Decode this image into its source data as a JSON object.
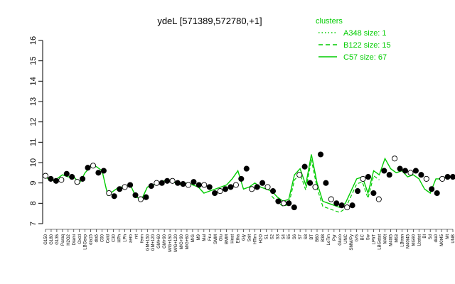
{
  "chart_data": {
    "type": "line",
    "title": "ydeL [571389,572780,+1]",
    "xlabel": "",
    "ylabel": "",
    "ylim": [
      7,
      16
    ],
    "yticks": [
      7,
      8,
      9,
      10,
      11,
      12,
      13,
      14,
      15,
      16
    ],
    "colors": {
      "line": "#00cc00",
      "points": "#000000",
      "axis": "#000000"
    },
    "legend": {
      "title": "clusters",
      "placement": "top-right",
      "entries": [
        {
          "label": "A348 size: 1",
          "style": "dotted"
        },
        {
          "label": "B122 size: 15",
          "style": "dashed"
        },
        {
          "label": "C57 size: 67",
          "style": "solid"
        }
      ]
    },
    "categories": [
      "G150",
      "G180",
      "G135",
      "Paraq",
      "H2O2",
      "Diami",
      "Oxctl",
      "LBGexp",
      "dia15",
      "dia5",
      "C90",
      "Cold",
      "C30",
      "HPh",
      "LPh",
      "aero",
      "nit",
      "ferm",
      "GM+150",
      "GM+120",
      "GM+60",
      "GM+90",
      "M/G+150",
      "M/G+120",
      "M/G+90",
      "M/G+60",
      "M/G",
      "M9",
      "Mal",
      "Fru",
      "SMM",
      "Glu",
      "BMM",
      "Heat",
      "Etha",
      "Gly",
      "Salt",
      "HTim",
      "H2O",
      "S1",
      "S2",
      "S3",
      "S4",
      "S5",
      "S6",
      "S7",
      "S8",
      "BT",
      "B60",
      "B38",
      "LoTm",
      "Pyr",
      "Gluco",
      "UNC",
      "SMM/Py",
      "G/S",
      "BC",
      "Sw",
      "LPhT",
      "LBGstat",
      "M40t",
      "M40t5",
      "M63",
      "LBtran",
      "M40t45",
      "MG90",
      "Lbstat",
      "BI",
      "Sd",
      "dia0",
      "M0t45",
      "Mt",
      "UNB"
    ],
    "series": [
      {
        "values": [
          9.3,
          9.1,
          9.2,
          9.4,
          9.3,
          9.3,
          9.0,
          9.5,
          9.8,
          9.8,
          9.6,
          8.4,
          8.6,
          8.8,
          8.8,
          8.9,
          8.3,
          8.2,
          8.8,
          8.9,
          9.0,
          9.1,
          9.1,
          9.0,
          8.9,
          9.0,
          8.9,
          8.8,
          8.5,
          8.6,
          8.7,
          8.8,
          8.9,
          9.2,
          9.6,
          8.7,
          8.8,
          9.0,
          8.8,
          8.7,
          8.6,
          8.3,
          8.1,
          8.2,
          9.4,
          9.7,
          8.9,
          10.4,
          9.0,
          8.1,
          8.0,
          7.9,
          7.8,
          8.0,
          8.6,
          9.2,
          9.3,
          8.5,
          9.6,
          9.4,
          10.2,
          9.7,
          9.5,
          9.6,
          9.3,
          9.4,
          9.2,
          8.7,
          8.5,
          9.2,
          9.2,
          9.3,
          9.3
        ]
      }
    ],
    "points": [
      [
        0,
        9.35
      ],
      [
        0.5,
        9.2
      ],
      [
        1,
        9.1
      ],
      [
        1.5,
        9.15
      ],
      [
        2,
        9.45
      ],
      [
        2.5,
        9.3
      ],
      [
        3,
        9.05
      ],
      [
        3.5,
        9.2
      ],
      [
        4,
        9.75
      ],
      [
        4.5,
        9.85
      ],
      [
        5,
        9.5
      ],
      [
        5.5,
        9.6
      ],
      [
        6,
        8.5
      ],
      [
        6.5,
        8.35
      ],
      [
        7,
        8.7
      ],
      [
        7.5,
        8.8
      ],
      [
        8,
        8.9
      ],
      [
        8.5,
        8.4
      ],
      [
        9,
        8.2
      ],
      [
        9.5,
        8.3
      ],
      [
        10,
        8.85
      ],
      [
        10.5,
        9.0
      ],
      [
        11,
        9.0
      ],
      [
        11.5,
        9.1
      ],
      [
        12,
        9.1
      ],
      [
        12.5,
        9.0
      ],
      [
        13,
        8.95
      ],
      [
        13.5,
        8.9
      ],
      [
        14,
        9.05
      ],
      [
        14.5,
        8.9
      ],
      [
        15,
        8.9
      ],
      [
        15.5,
        8.8
      ],
      [
        16,
        8.5
      ],
      [
        16.5,
        8.6
      ],
      [
        17,
        8.7
      ],
      [
        17.5,
        8.8
      ],
      [
        18,
        8.9
      ],
      [
        18.5,
        9.2
      ],
      [
        19,
        9.7
      ],
      [
        19.5,
        8.7
      ],
      [
        20,
        8.8
      ],
      [
        20.5,
        9.0
      ],
      [
        21,
        8.8
      ],
      [
        21.5,
        8.6
      ],
      [
        22,
        8.1
      ],
      [
        22.5,
        8.0
      ],
      [
        23,
        8.0
      ],
      [
        23.5,
        7.8
      ],
      [
        24,
        9.4
      ],
      [
        24.5,
        9.8
      ],
      [
        25,
        9.0
      ],
      [
        25.5,
        8.8
      ],
      [
        26,
        10.4
      ],
      [
        26.5,
        9.0
      ],
      [
        27,
        8.2
      ],
      [
        27.5,
        8.0
      ],
      [
        28,
        7.9
      ],
      [
        28.5,
        7.8
      ],
      [
        29,
        7.9
      ],
      [
        29.5,
        8.6
      ],
      [
        30,
        9.2
      ],
      [
        30.5,
        9.3
      ],
      [
        31,
        8.5
      ],
      [
        31.5,
        8.2
      ],
      [
        32,
        9.6
      ],
      [
        32.5,
        9.4
      ],
      [
        33,
        10.2
      ],
      [
        33.5,
        9.7
      ],
      [
        34,
        9.6
      ],
      [
        34.5,
        9.5
      ],
      [
        35,
        9.6
      ],
      [
        35.5,
        9.4
      ],
      [
        36,
        9.2
      ],
      [
        36.5,
        8.7
      ],
      [
        37,
        8.5
      ],
      [
        37.5,
        9.2
      ],
      [
        38,
        9.3
      ],
      [
        38.5,
        9.3
      ]
    ]
  }
}
